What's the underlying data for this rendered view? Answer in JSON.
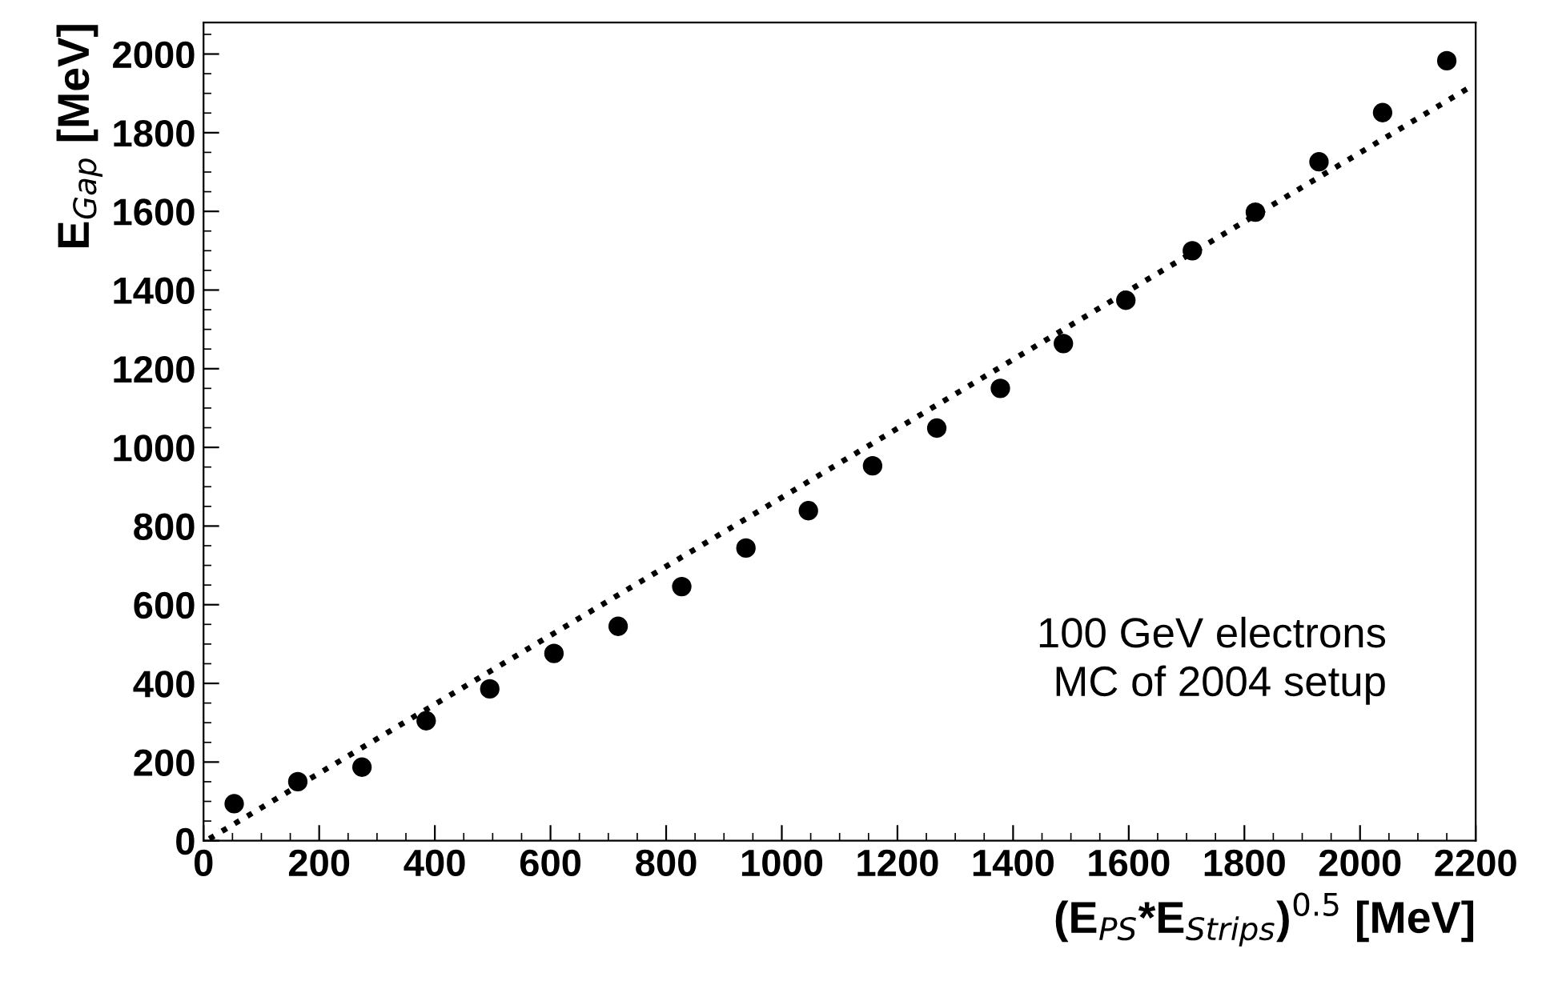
{
  "chart_data": {
    "type": "scatter",
    "xlabel": "(E$_{PS}$*E$_{Strips}$)$^{0.5}$ [MeV]",
    "ylabel": "E$_{Gap}$ [MeV]",
    "annotations": [
      "100 GeV electrons\n MC of 2004 setup"
    ],
    "xlim": [
      0,
      2200
    ],
    "ylim": [
      0,
      2080
    ],
    "xticks": [
      0,
      200,
      400,
      600,
      800,
      1000,
      1200,
      1400,
      1600,
      1800,
      2000,
      2200
    ],
    "yticks": [
      0,
      200,
      400,
      600,
      800,
      1000,
      1200,
      1400,
      1600,
      1800,
      2000
    ],
    "grid": false,
    "legend": false,
    "series": [
      {
        "color": "#000000",
        "marker": "circle",
        "x": [
          53,
          163,
          274,
          385,
          495,
          606,
          717,
          827,
          938,
          1046,
          1157,
          1268,
          1378,
          1487,
          1595,
          1710,
          1819,
          1929,
          2039,
          2150
        ],
        "values": [
          94,
          150,
          187,
          305,
          386,
          476,
          545,
          646,
          744,
          839,
          953,
          1049,
          1150,
          1264,
          1374,
          1500,
          1598,
          1726,
          1851,
          1983
        ]
      },
      {
        "type": "line",
        "color": "#000000",
        "line_style": "dotted",
        "marker": "none",
        "x": [
          10,
          2195
        ],
        "values": [
          5,
          1920
        ]
      }
    ]
  }
}
